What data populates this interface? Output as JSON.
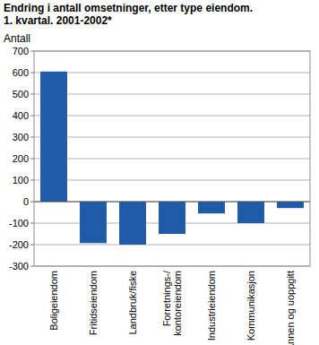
{
  "chart_data": {
    "type": "bar",
    "title": "Endring i antall omsetninger, etter type eiendom.",
    "subtitle": "1. kvartal. 2001-2002*",
    "y_label": "Antall",
    "categories": [
      "Boligeiendom",
      "Fritidseiendom",
      "Landbruk/fiske",
      "Forretnings-/kontoreiendom",
      "Industrieiendom",
      "Kommunikasjon",
      "Annen og uoppgitt"
    ],
    "values": [
      605,
      -193,
      -200,
      -150,
      -55,
      -100,
      -30
    ],
    "color": "#1f5ba6",
    "ylim": [
      -300,
      700
    ],
    "yticks": [
      -300,
      -200,
      -100,
      0,
      100,
      200,
      300,
      400,
      500,
      600,
      700
    ],
    "grid": true
  }
}
